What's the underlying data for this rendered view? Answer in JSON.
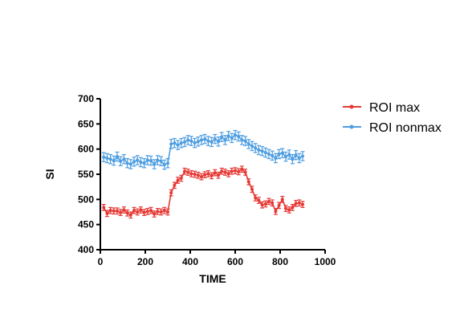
{
  "chart_data": {
    "type": "line",
    "xlabel": "TIME",
    "ylabel": "SI",
    "xlim": [
      0,
      1000
    ],
    "ylim": [
      400,
      700
    ],
    "xticks": [
      0,
      200,
      400,
      600,
      800,
      1000
    ],
    "yticks": [
      400,
      450,
      500,
      550,
      600,
      650,
      700
    ],
    "grid": false,
    "legend_position": "top-right",
    "x": [
      15,
      30,
      45,
      60,
      75,
      90,
      105,
      120,
      135,
      150,
      165,
      180,
      195,
      210,
      225,
      240,
      255,
      270,
      285,
      300,
      315,
      330,
      345,
      360,
      375,
      390,
      405,
      420,
      435,
      450,
      465,
      480,
      495,
      510,
      525,
      540,
      555,
      570,
      585,
      600,
      615,
      630,
      645,
      660,
      675,
      690,
      705,
      720,
      735,
      750,
      765,
      780,
      795,
      810,
      825,
      840,
      855,
      870,
      885,
      900
    ],
    "series": [
      {
        "name": "ROI max",
        "color": "#e53935",
        "values": [
          484,
          472,
          478,
          477,
          477,
          474,
          479,
          473,
          469,
          478,
          475,
          479,
          474,
          476,
          478,
          471,
          476,
          475,
          478,
          475,
          513,
          528,
          538,
          542,
          556,
          554,
          551,
          550,
          548,
          545,
          549,
          551,
          547,
          553,
          548,
          556,
          554,
          551,
          556,
          557,
          555,
          560,
          554,
          535,
          520,
          503,
          498,
          489,
          491,
          496,
          493,
          476,
          488,
          500,
          482,
          479,
          484,
          492,
          493,
          490
        ],
        "error": [
          6,
          6,
          6,
          6,
          6,
          6,
          6,
          6,
          6,
          6,
          6,
          6,
          6,
          6,
          6,
          6,
          6,
          6,
          6,
          6,
          6,
          6,
          6,
          6,
          6,
          6,
          6,
          6,
          6,
          6,
          6,
          6,
          6,
          6,
          6,
          6,
          6,
          6,
          6,
          6,
          6,
          6,
          6,
          6,
          6,
          6,
          6,
          6,
          6,
          6,
          6,
          6,
          6,
          6,
          6,
          6,
          6,
          6,
          6,
          6
        ]
      },
      {
        "name": "ROI nonmax",
        "color": "#4d9de0",
        "values": [
          584,
          582,
          580,
          577,
          585,
          576,
          580,
          572,
          570,
          575,
          578,
          574,
          572,
          578,
          577,
          570,
          578,
          576,
          569,
          572,
          610,
          612,
          608,
          612,
          614,
          618,
          616,
          612,
          615,
          618,
          620,
          616,
          614,
          620,
          615,
          624,
          618,
          626,
          622,
          628,
          625,
          618,
          616,
          610,
          606,
          602,
          598,
          596,
          593,
          590,
          587,
          582,
          590,
          592,
          585,
          589,
          580,
          588,
          582,
          586
        ],
        "error": [
          9,
          9,
          9,
          9,
          9,
          9,
          9,
          9,
          9,
          9,
          9,
          9,
          9,
          9,
          9,
          9,
          9,
          9,
          9,
          9,
          9,
          9,
          9,
          9,
          9,
          9,
          9,
          9,
          9,
          9,
          9,
          9,
          9,
          9,
          9,
          9,
          9,
          9,
          9,
          9,
          9,
          9,
          9,
          9,
          9,
          9,
          9,
          9,
          9,
          9,
          9,
          9,
          9,
          9,
          9,
          9,
          9,
          9,
          9,
          9
        ]
      }
    ]
  }
}
